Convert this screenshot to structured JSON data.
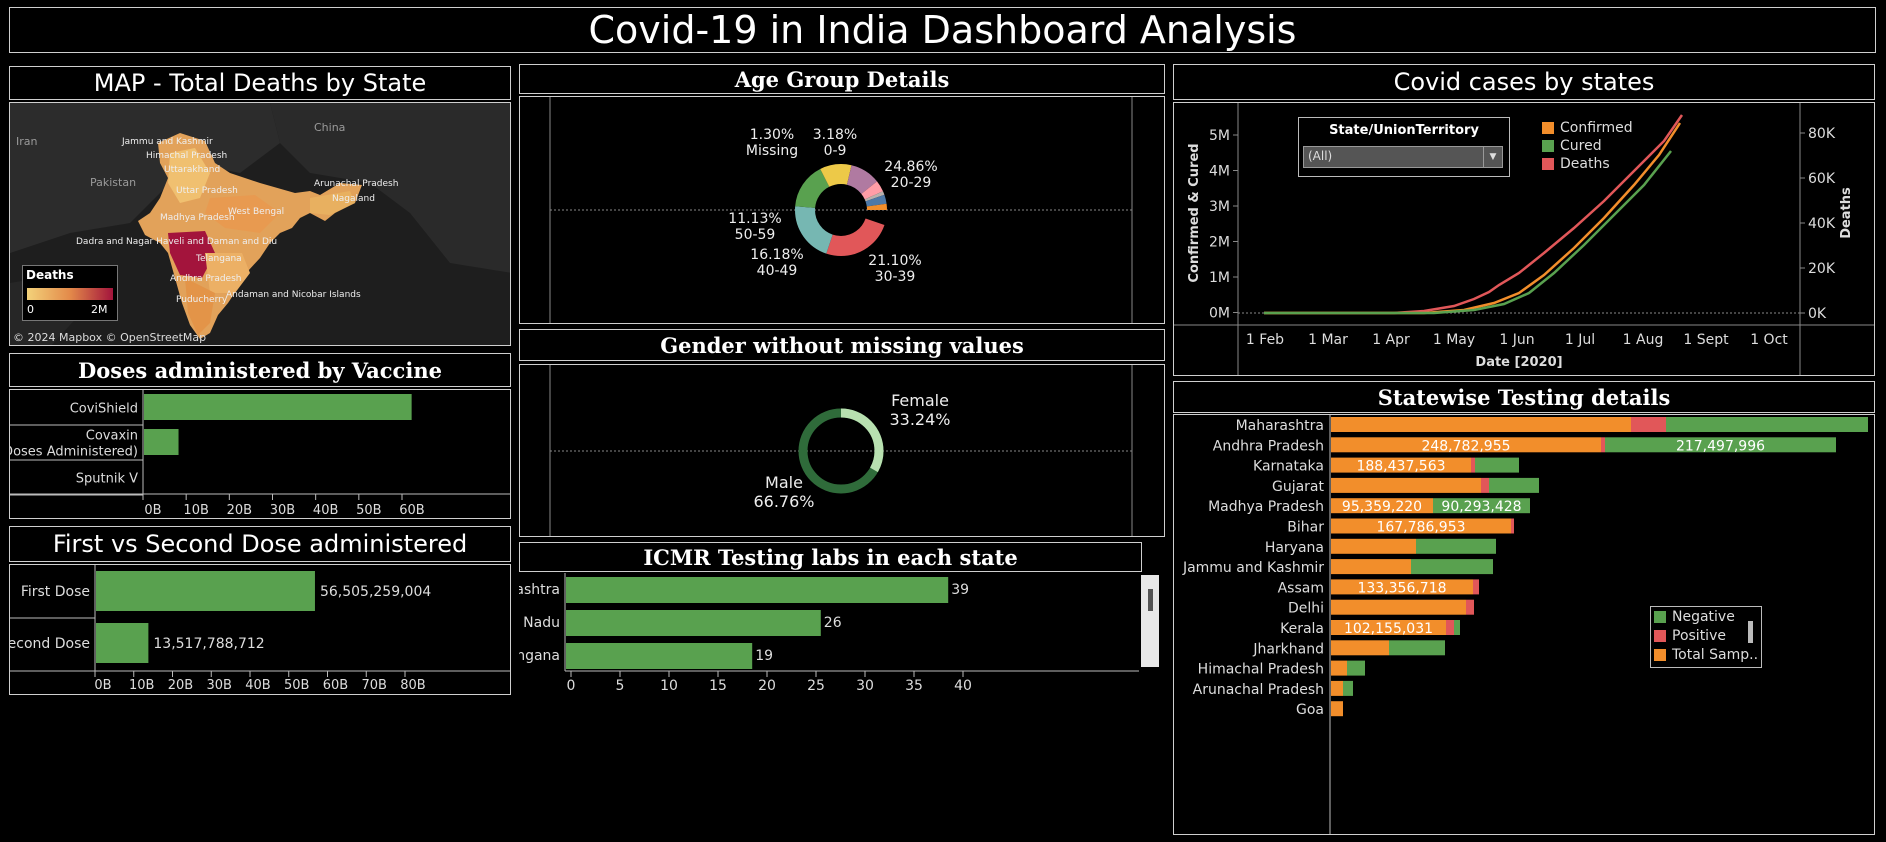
{
  "header": {
    "title": "Covid-19 in India Dashboard Analysis"
  },
  "map": {
    "title": "MAP - Total Deaths by State",
    "countries": [
      "China",
      "Iran",
      "Pakistan"
    ],
    "states": [
      "Jammu and Kashmir",
      "Himachal Pradesh",
      "Uttarakhand",
      "Uttar Pradesh",
      "Arunachal Pradesh",
      "Nagaland",
      "Madhya Pradesh",
      "West Bengal",
      "Dadra and Nagar Haveli and Daman and Diu",
      "Telangana",
      "Andhra Pradesh",
      "Puducherry",
      "Andaman and Nicobar Islands"
    ],
    "legend_title": "Deaths",
    "legend_min": "0",
    "legend_max": "2M",
    "attribution": "© 2024 Mapbox © OpenStreetMap",
    "colors": {
      "low": "#f3d27a",
      "mid": "#e38a4a",
      "high": "#a3143c"
    }
  },
  "vaccine": {
    "title": "Doses administered by Vaccine",
    "categories": [
      "CoviShield",
      "Covaxin (Doses Administered)",
      "Sputnik V"
    ],
    "values": [
      62,
      8,
      0
    ],
    "ticks": [
      "0B",
      "10B",
      "20B",
      "30B",
      "40B",
      "50B",
      "60B"
    ],
    "color": "#59a14f"
  },
  "doses": {
    "title": "First vs Second Dose administered",
    "categories": [
      "First Dose",
      "Second Dose"
    ],
    "values": [
      56505259004,
      13517788712
    ],
    "value_labels": [
      "56,505,259,004",
      "13,517,788,712"
    ],
    "ticks": [
      "0B",
      "10B",
      "20B",
      "30B",
      "40B",
      "50B",
      "60B",
      "70B",
      "80B"
    ],
    "color": "#59a14f"
  },
  "age": {
    "title": "Age Group Details",
    "labels": [
      {
        "pct": "1.30%",
        "group": "Missing"
      },
      {
        "pct": "3.18%",
        "group": "0-9"
      },
      {
        "pct": "24.86%",
        "group": "20-29"
      },
      {
        "pct": "21.10%",
        "group": "30-39"
      },
      {
        "pct": "16.18%",
        "group": "40-49"
      },
      {
        "pct": "11.13%",
        "group": "50-59"
      }
    ]
  },
  "gender": {
    "title": "Gender without missing values",
    "female_label": "Female",
    "female_pct": "33.24%",
    "male_label": "Male",
    "male_pct": "66.76%",
    "female_color": "#b8e0b0",
    "male_color": "#2f6b3a"
  },
  "icmr": {
    "title": "ICMR Testing labs in each state",
    "categories": [
      "Maharashtra",
      "Tamil Nadu",
      "Telangana"
    ],
    "values": [
      39,
      26,
      19
    ],
    "ticks": [
      "0",
      "5",
      "10",
      "15",
      "20",
      "25",
      "30",
      "35",
      "40"
    ],
    "color": "#59a14f"
  },
  "cases": {
    "title": "Covid cases by states",
    "filter_title": "State/UnionTerritory",
    "filter_value": "(All)",
    "legend": [
      {
        "name": "Confirmed",
        "color": "#f28e2b"
      },
      {
        "name": "Cured",
        "color": "#59a14f"
      },
      {
        "name": "Deaths",
        "color": "#e15759"
      }
    ],
    "y_left_label": "Confirmed & Cured",
    "y_right_label": "Deaths",
    "x_label": "Date [2020]",
    "y_left_ticks": [
      "5M",
      "4M",
      "3M",
      "2M",
      "1M",
      "0M"
    ],
    "y_right_ticks": [
      "80K",
      "60K",
      "40K",
      "20K",
      "0K"
    ],
    "x_ticks": [
      "1 Feb",
      "1 Mar",
      "1 Apr",
      "1 May",
      "1 Jun",
      "1 Jul",
      "1 Aug",
      "1 Sept",
      "1 Oct"
    ]
  },
  "testing": {
    "title": "Statewise Testing details",
    "states": [
      "Maharashtra",
      "Andhra Pradesh",
      "Karnataka",
      "Gujarat",
      "Madhya Pradesh",
      "Bihar",
      "Haryana",
      "Jammu and Kashmir",
      "Assam",
      "Delhi",
      "Kerala",
      "Jharkhand",
      "Himachal Pradesh",
      "Arunachal Pradesh",
      "Goa"
    ],
    "total_labels": [
      "",
      "248,782,955",
      "188,437,563",
      "",
      "95,359,220",
      "167,786,953",
      "",
      "",
      "133,356,718",
      "",
      "102,155,031",
      "",
      "",
      "",
      ""
    ],
    "negative_labels": [
      "",
      "217,497,996",
      "",
      "",
      "90,293,428",
      "",
      "",
      "",
      "",
      "",
      "",
      "",
      "",
      "",
      ""
    ],
    "legend": [
      {
        "name": "Negative",
        "color": "#59a14f"
      },
      {
        "name": "Positive",
        "color": "#e15759"
      },
      {
        "name": "Total Samp..",
        "color": "#f28e2b"
      }
    ]
  }
}
